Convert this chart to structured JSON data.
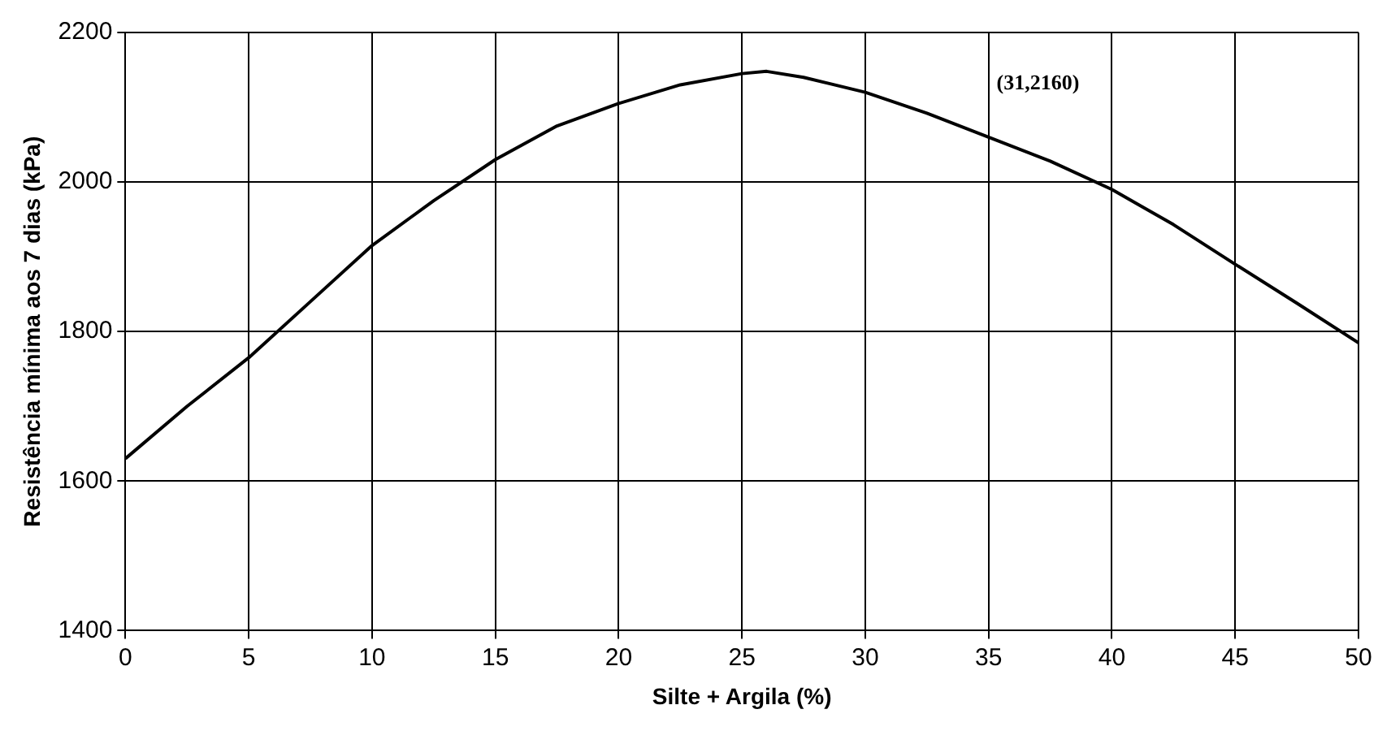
{
  "chart_data": {
    "type": "line",
    "xlabel": "Silte + Argila (%)",
    "ylabel": "Resistência mínima aos 7 dias (kPa)",
    "x": [
      0,
      2.5,
      5,
      7.5,
      10,
      12.5,
      15,
      17.5,
      20,
      22.5,
      25,
      26,
      27.5,
      30,
      32.5,
      35,
      37.5,
      40,
      42.5,
      45,
      47.5,
      50
    ],
    "series": [
      {
        "color": "#000000",
        "values": [
          1630,
          1700,
          1765,
          1840,
          1915,
          1975,
          2030,
          2075,
          2105,
          2130,
          2145,
          2148,
          2140,
          2120,
          2092,
          2060,
          2028,
          1990,
          1943,
          1890,
          1838,
          1785
        ]
      }
    ],
    "xlim": [
      0,
      50
    ],
    "xticks": [
      0,
      5,
      10,
      15,
      20,
      25,
      30,
      35,
      40,
      45,
      50
    ],
    "ylim": [
      1400,
      2200
    ],
    "yticks": [
      1400,
      1600,
      1800,
      2000,
      2200
    ],
    "grid": true,
    "marker": "none",
    "line_style": "solid",
    "legend": false,
    "annotations": [
      "(31,2160)"
    ]
  }
}
